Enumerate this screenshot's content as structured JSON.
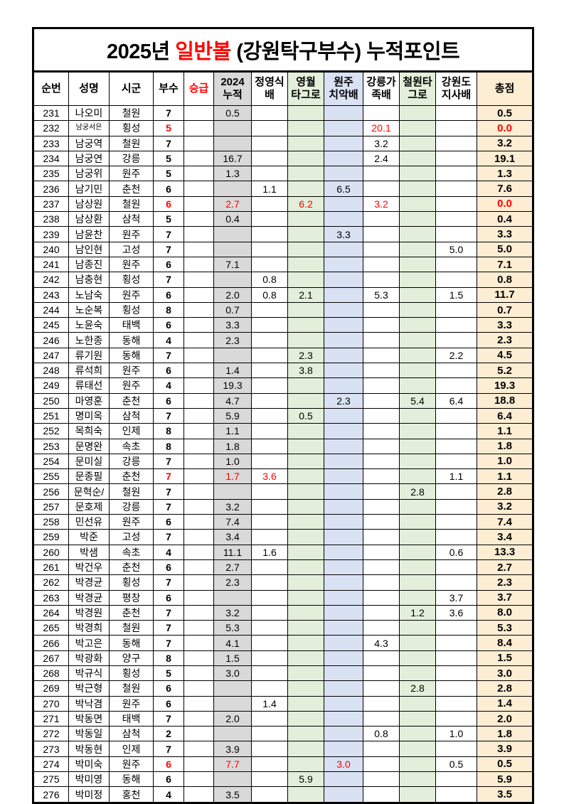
{
  "title": {
    "prefix": "2025년 ",
    "highlight": "일반볼",
    "suffix": " (강원탁구부수) 누적포인트"
  },
  "colors": {
    "red": "#ff0000",
    "gray": "#d9d9d9",
    "green": "#e3efda",
    "blue": "#d9e2f3",
    "peach": "#fcedd3",
    "border": "#000000"
  },
  "columns": [
    {
      "key": "no",
      "label": "순번",
      "bg": null,
      "bold": false,
      "red_label": false
    },
    {
      "key": "name",
      "label": "성명",
      "bg": null,
      "bold": false,
      "red_label": false
    },
    {
      "key": "city",
      "label": "시군",
      "bg": null,
      "bold": false,
      "red_label": false
    },
    {
      "key": "busu",
      "label": "부수",
      "bg": null,
      "bold": true,
      "red_label": false
    },
    {
      "key": "promo",
      "label": "승급",
      "bg": null,
      "bold": false,
      "red_label": true
    },
    {
      "key": "acc2024",
      "label": "2024\n누적",
      "bg": "gray",
      "bold": false,
      "red_label": false
    },
    {
      "key": "jys",
      "label": "정영식\n배",
      "bg": null,
      "bold": false,
      "red_label": false
    },
    {
      "key": "yw",
      "label": "영월\n타그로",
      "bg": "green",
      "bold": false,
      "red_label": false
    },
    {
      "key": "wj",
      "label": "원주\n치악배",
      "bg": "blue",
      "bold": false,
      "red_label": false
    },
    {
      "key": "gn",
      "label": "강릉가\n족배",
      "bg": null,
      "bold": false,
      "red_label": false
    },
    {
      "key": "cw",
      "label": "철원타\n그로",
      "bg": "green",
      "bold": false,
      "red_label": false
    },
    {
      "key": "gwd",
      "label": "강원도\n지사배",
      "bg": null,
      "bold": false,
      "red_label": false
    },
    {
      "key": "total",
      "label": "총점",
      "bg": "peach",
      "bold": true,
      "red_label": false
    }
  ],
  "rows": [
    {
      "cells": [
        "231",
        "나오미",
        "철원",
        "7",
        "",
        "0.5",
        "",
        "",
        "",
        "",
        "",
        "",
        "0.5"
      ],
      "red": []
    },
    {
      "cells": [
        "232",
        "남궁서은",
        "횡성",
        "5",
        "",
        "",
        "",
        "",
        "",
        "20.1",
        "",
        "",
        "0.0"
      ],
      "red": [
        3,
        9,
        12
      ],
      "small_name": true
    },
    {
      "cells": [
        "233",
        "남궁역",
        "철원",
        "7",
        "",
        "",
        "",
        "",
        "",
        "3.2",
        "",
        "",
        "3.2"
      ],
      "red": []
    },
    {
      "cells": [
        "234",
        "남궁연",
        "강릉",
        "5",
        "",
        "16.7",
        "",
        "",
        "",
        "2.4",
        "",
        "",
        "19.1"
      ],
      "red": []
    },
    {
      "cells": [
        "235",
        "남궁위",
        "원주",
        "5",
        "",
        "1.3",
        "",
        "",
        "",
        "",
        "",
        "",
        "1.3"
      ],
      "red": []
    },
    {
      "cells": [
        "236",
        "남기민",
        "춘천",
        "6",
        "",
        "",
        "1.1",
        "",
        "6.5",
        "",
        "",
        "",
        "7.6"
      ],
      "red": []
    },
    {
      "cells": [
        "237",
        "남상원",
        "철원",
        "6",
        "",
        "2.7",
        "",
        "6.2",
        "",
        "3.2",
        "",
        "",
        "0.0"
      ],
      "red": [
        3,
        5,
        7,
        9,
        12
      ]
    },
    {
      "cells": [
        "238",
        "남상환",
        "삼척",
        "5",
        "",
        "0.4",
        "",
        "",
        "",
        "",
        "",
        "",
        "0.4"
      ],
      "red": []
    },
    {
      "cells": [
        "239",
        "남윤찬",
        "원주",
        "7",
        "",
        "",
        "",
        "",
        "3.3",
        "",
        "",
        "",
        "3.3"
      ],
      "red": []
    },
    {
      "cells": [
        "240",
        "남인현",
        "고성",
        "7",
        "",
        "",
        "",
        "",
        "",
        "",
        "",
        "5.0",
        "5.0"
      ],
      "red": []
    },
    {
      "cells": [
        "241",
        "남종진",
        "원주",
        "6",
        "",
        "7.1",
        "",
        "",
        "",
        "",
        "",
        "",
        "7.1"
      ],
      "red": []
    },
    {
      "cells": [
        "242",
        "남충현",
        "횡성",
        "7",
        "",
        "",
        "0.8",
        "",
        "",
        "",
        "",
        "",
        "0.8"
      ],
      "red": []
    },
    {
      "cells": [
        "243",
        "노남숙",
        "원주",
        "6",
        "",
        "2.0",
        "0.8",
        "2.1",
        "",
        "5.3",
        "",
        "1.5",
        "11.7"
      ],
      "red": []
    },
    {
      "cells": [
        "244",
        "노순복",
        "횡성",
        "8",
        "",
        "0.7",
        "",
        "",
        "",
        "",
        "",
        "",
        "0.7"
      ],
      "red": []
    },
    {
      "cells": [
        "245",
        "노윤숙",
        "태백",
        "6",
        "",
        "3.3",
        "",
        "",
        "",
        "",
        "",
        "",
        "3.3"
      ],
      "red": []
    },
    {
      "cells": [
        "246",
        "노한종",
        "동해",
        "4",
        "",
        "2.3",
        "",
        "",
        "",
        "",
        "",
        "",
        "2.3"
      ],
      "red": []
    },
    {
      "cells": [
        "247",
        "류기원",
        "동해",
        "7",
        "",
        "",
        "",
        "2.3",
        "",
        "",
        "",
        "2.2",
        "4.5"
      ],
      "red": []
    },
    {
      "cells": [
        "248",
        "류석희",
        "원주",
        "6",
        "",
        "1.4",
        "",
        "3.8",
        "",
        "",
        "",
        "",
        "5.2"
      ],
      "red": []
    },
    {
      "cells": [
        "249",
        "류태선",
        "원주",
        "4",
        "",
        "19.3",
        "",
        "",
        "",
        "",
        "",
        "",
        "19.3"
      ],
      "red": []
    },
    {
      "cells": [
        "250",
        "마영훈",
        "춘천",
        "6",
        "",
        "4.7",
        "",
        "",
        "2.3",
        "",
        "5.4",
        "6.4",
        "18.8"
      ],
      "red": []
    },
    {
      "cells": [
        "251",
        "명미옥",
        "삼척",
        "7",
        "",
        "5.9",
        "",
        "0.5",
        "",
        "",
        "",
        "",
        "6.4"
      ],
      "red": []
    },
    {
      "cells": [
        "252",
        "목희숙",
        "인제",
        "8",
        "",
        "1.1",
        "",
        "",
        "",
        "",
        "",
        "",
        "1.1"
      ],
      "red": []
    },
    {
      "cells": [
        "253",
        "문명완",
        "속초",
        "8",
        "",
        "1.8",
        "",
        "",
        "",
        "",
        "",
        "",
        "1.8"
      ],
      "red": []
    },
    {
      "cells": [
        "254",
        "문미실",
        "강릉",
        "7",
        "",
        "1.0",
        "",
        "",
        "",
        "",
        "",
        "",
        "1.0"
      ],
      "red": []
    },
    {
      "cells": [
        "255",
        "문종필",
        "춘천",
        "7",
        "",
        "1.7",
        "3.6",
        "",
        "",
        "",
        "",
        "1.1",
        "1.1"
      ],
      "red": [
        3,
        5,
        6
      ]
    },
    {
      "cells": [
        "256",
        "문혁순/",
        "철원",
        "7",
        "",
        "",
        "",
        "",
        "",
        "",
        "2.8",
        "",
        "2.8"
      ],
      "red": []
    },
    {
      "cells": [
        "257",
        "문호제",
        "강릉",
        "7",
        "",
        "3.2",
        "",
        "",
        "",
        "",
        "",
        "",
        "3.2"
      ],
      "red": []
    },
    {
      "cells": [
        "258",
        "민선유",
        "원주",
        "6",
        "",
        "7.4",
        "",
        "",
        "",
        "",
        "",
        "",
        "7.4"
      ],
      "red": []
    },
    {
      "cells": [
        "259",
        "박준",
        "고성",
        "7",
        "",
        "3.4",
        "",
        "",
        "",
        "",
        "",
        "",
        "3.4"
      ],
      "red": []
    },
    {
      "cells": [
        "260",
        "박샘",
        "속초",
        "4",
        "",
        "11.1",
        "1.6",
        "",
        "",
        "",
        "",
        "0.6",
        "13.3"
      ],
      "red": []
    },
    {
      "cells": [
        "261",
        "박건우",
        "춘천",
        "6",
        "",
        "2.7",
        "",
        "",
        "",
        "",
        "",
        "",
        "2.7"
      ],
      "red": []
    },
    {
      "cells": [
        "262",
        "박경균",
        "횡성",
        "7",
        "",
        "2.3",
        "",
        "",
        "",
        "",
        "",
        "",
        "2.3"
      ],
      "red": []
    },
    {
      "cells": [
        "263",
        "박경균",
        "평창",
        "6",
        "",
        "",
        "",
        "",
        "",
        "",
        "",
        "3.7",
        "3.7"
      ],
      "red": []
    },
    {
      "cells": [
        "264",
        "박경원",
        "춘천",
        "7",
        "",
        "3.2",
        "",
        "",
        "",
        "",
        "1.2",
        "3.6",
        "8.0"
      ],
      "red": []
    },
    {
      "cells": [
        "265",
        "박경희",
        "철원",
        "7",
        "",
        "5.3",
        "",
        "",
        "",
        "",
        "",
        "",
        "5.3"
      ],
      "red": []
    },
    {
      "cells": [
        "266",
        "박고은",
        "동해",
        "7",
        "",
        "4.1",
        "",
        "",
        "",
        "4.3",
        "",
        "",
        "8.4"
      ],
      "red": []
    },
    {
      "cells": [
        "267",
        "박광화",
        "양구",
        "8",
        "",
        "1.5",
        "",
        "",
        "",
        "",
        "",
        "",
        "1.5"
      ],
      "red": []
    },
    {
      "cells": [
        "268",
        "박규식",
        "횡성",
        "5",
        "",
        "3.0",
        "",
        "",
        "",
        "",
        "",
        "",
        "3.0"
      ],
      "red": []
    },
    {
      "cells": [
        "269",
        "박근형",
        "철원",
        "6",
        "",
        "",
        "",
        "",
        "",
        "",
        "2.8",
        "",
        "2.8"
      ],
      "red": []
    },
    {
      "cells": [
        "270",
        "박낙겸",
        "원주",
        "6",
        "",
        "",
        "1.4",
        "",
        "",
        "",
        "",
        "",
        "1.4"
      ],
      "red": []
    },
    {
      "cells": [
        "271",
        "박동면",
        "태백",
        "7",
        "",
        "2.0",
        "",
        "",
        "",
        "",
        "",
        "",
        "2.0"
      ],
      "red": []
    },
    {
      "cells": [
        "272",
        "박동일",
        "삼척",
        "2",
        "",
        "",
        "",
        "",
        "",
        "0.8",
        "",
        "1.0",
        "1.8"
      ],
      "red": []
    },
    {
      "cells": [
        "273",
        "박동현",
        "인제",
        "7",
        "",
        "3.9",
        "",
        "",
        "",
        "",
        "",
        "",
        "3.9"
      ],
      "red": []
    },
    {
      "cells": [
        "274",
        "박미숙",
        "원주",
        "6",
        "",
        "7.7",
        "",
        "",
        "3.0",
        "",
        "",
        "0.5",
        "0.5"
      ],
      "red": [
        3,
        5,
        8
      ]
    },
    {
      "cells": [
        "275",
        "박미영",
        "동해",
        "6",
        "",
        "",
        "",
        "5.9",
        "",
        "",
        "",
        "",
        "5.9"
      ],
      "red": []
    },
    {
      "cells": [
        "276",
        "박미정",
        "홍천",
        "4",
        "",
        "3.5",
        "",
        "",
        "",
        "",
        "",
        "",
        "3.5"
      ],
      "red": []
    }
  ]
}
